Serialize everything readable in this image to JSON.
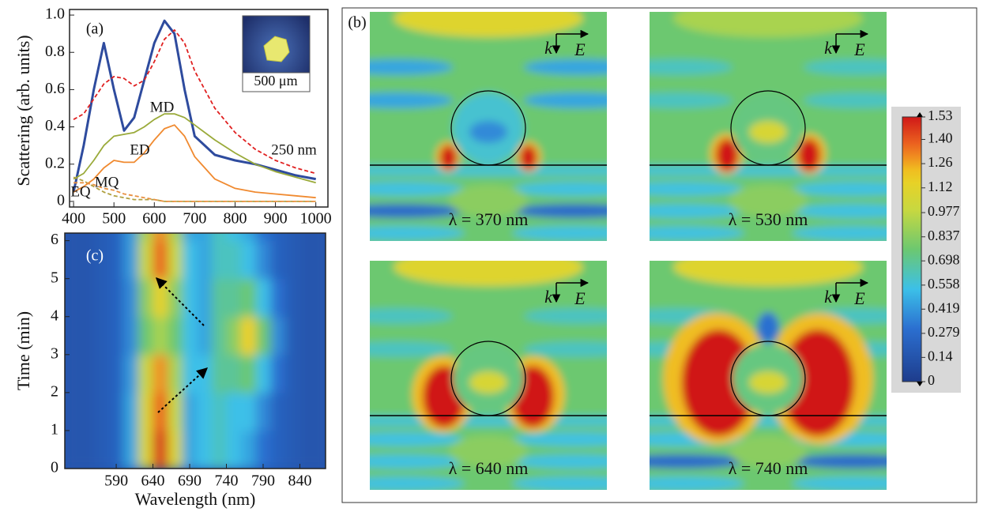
{
  "chart_data": [
    {
      "type": "line",
      "panel_label": "(a)",
      "ylabel": "Scattering (arb. units)",
      "inset_label": "500 μm",
      "xlim": [
        390,
        1030
      ],
      "ylim": [
        -0.03,
        1.03
      ],
      "xticks": [
        400,
        500,
        600,
        700,
        800,
        900,
        1000
      ],
      "yticks": [
        0,
        0.2,
        0.4,
        0.6,
        0.8,
        {
          "value": 1,
          "label": "1.0"
        }
      ],
      "x": [
        400,
        425,
        450,
        475,
        500,
        525,
        550,
        575,
        600,
        625,
        650,
        675,
        700,
        750,
        800,
        850,
        900,
        950,
        1000
      ],
      "series": [
        {
          "color": "#2e4b9e",
          "style": "solid",
          "values": [
            0.05,
            0.3,
            0.6,
            0.85,
            0.6,
            0.38,
            0.45,
            0.65,
            0.85,
            0.97,
            0.9,
            0.6,
            0.35,
            0.25,
            0.22,
            0.2,
            0.17,
            0.14,
            0.12
          ]
        },
        {
          "name": "250 nm",
          "color": "#e02020",
          "style": "dashed",
          "values": [
            0.44,
            0.47,
            0.55,
            0.63,
            0.67,
            0.66,
            0.62,
            0.65,
            0.75,
            0.87,
            0.92,
            0.85,
            0.7,
            0.5,
            0.37,
            0.28,
            0.22,
            0.18,
            0.15
          ]
        },
        {
          "name": "MD",
          "color": "#9aaa3a",
          "style": "solid",
          "values": [
            0.12,
            0.15,
            0.22,
            0.3,
            0.35,
            0.36,
            0.37,
            0.4,
            0.44,
            0.47,
            0.47,
            0.45,
            0.41,
            0.33,
            0.26,
            0.2,
            0.16,
            0.13,
            0.1
          ]
        },
        {
          "name": "ED",
          "color": "#f08a30",
          "style": "solid",
          "values": [
            0.05,
            0.08,
            0.12,
            0.18,
            0.22,
            0.21,
            0.21,
            0.26,
            0.33,
            0.39,
            0.41,
            0.35,
            0.24,
            0.12,
            0.07,
            0.05,
            0.04,
            0.03,
            0.02
          ]
        },
        {
          "name": "EQ",
          "color": "#b0a040",
          "style": "dashed",
          "values": [
            0.13,
            0.11,
            0.08,
            0.05,
            0.03,
            0.02,
            0.01,
            0.01,
            0.01,
            0,
            0,
            0,
            0,
            0,
            0,
            0,
            0,
            0,
            0
          ]
        },
        {
          "name": "MQ",
          "color": "#e89040",
          "style": "dashed",
          "values": [
            0.1,
            0.1,
            0.09,
            0.07,
            0.06,
            0.04,
            0.03,
            0.02,
            0.01,
            0,
            0,
            0,
            0,
            0,
            0,
            0,
            0,
            0,
            0
          ]
        }
      ]
    },
    {
      "type": "heatmap",
      "panel_label": "(c)",
      "xlabel": "Wavelength (nm)",
      "ylabel": "Time (min)",
      "xlim": [
        520,
        875
      ],
      "ylim": [
        0,
        6.2
      ],
      "xticks": [
        590,
        640,
        690,
        740,
        790,
        840
      ],
      "yticks": [
        0,
        1,
        2,
        3,
        4,
        5,
        6
      ],
      "x": [
        530,
        550,
        570,
        590,
        610,
        630,
        650,
        670,
        690,
        710,
        730,
        750,
        770,
        790,
        810,
        830,
        850,
        870
      ],
      "y": [
        0.5,
        1.5,
        2.5,
        3.5,
        4.5,
        5.5,
        6.5
      ],
      "z": [
        [
          0.1,
          0.1,
          0.12,
          0.15,
          0.3,
          0.7,
          0.97,
          0.7,
          0.3,
          0.35,
          0.4,
          0.35,
          0.3,
          0.2,
          0.15,
          0.12,
          0.1,
          0.1
        ],
        [
          0.1,
          0.1,
          0.12,
          0.15,
          0.3,
          0.7,
          0.9,
          0.65,
          0.3,
          0.35,
          0.4,
          0.35,
          0.35,
          0.25,
          0.15,
          0.12,
          0.1,
          0.1
        ],
        [
          0.1,
          0.1,
          0.12,
          0.15,
          0.28,
          0.65,
          0.85,
          0.6,
          0.35,
          0.35,
          0.45,
          0.45,
          0.5,
          0.35,
          0.2,
          0.12,
          0.1,
          0.1
        ],
        [
          0.1,
          0.1,
          0.12,
          0.15,
          0.25,
          0.5,
          0.6,
          0.5,
          0.35,
          0.3,
          0.45,
          0.55,
          0.78,
          0.5,
          0.25,
          0.12,
          0.1,
          0.1
        ],
        [
          0.1,
          0.1,
          0.12,
          0.15,
          0.25,
          0.55,
          0.75,
          0.55,
          0.35,
          0.3,
          0.45,
          0.45,
          0.5,
          0.35,
          0.2,
          0.12,
          0.1,
          0.1
        ],
        [
          0.1,
          0.1,
          0.12,
          0.15,
          0.28,
          0.65,
          0.9,
          0.65,
          0.35,
          0.3,
          0.4,
          0.4,
          0.35,
          0.25,
          0.15,
          0.12,
          0.1,
          0.1
        ],
        [
          0.1,
          0.1,
          0.12,
          0.15,
          0.28,
          0.6,
          0.85,
          0.6,
          0.3,
          0.3,
          0.4,
          0.35,
          0.3,
          0.2,
          0.15,
          0.12,
          0.1,
          0.1
        ]
      ]
    },
    {
      "type": "field-map",
      "panel_label": "(b)",
      "k_label": "k",
      "e_label": "E",
      "panels": [
        {
          "label": "λ = 370 nm"
        },
        {
          "label": "λ = 530 nm"
        },
        {
          "label": "λ = 640 nm"
        },
        {
          "label": "λ = 740 nm"
        }
      ],
      "clim": [
        0,
        1.53
      ],
      "colorbar_ticks": [
        0,
        0.14,
        0.279,
        0.419,
        0.558,
        0.698,
        0.837,
        0.977,
        1.12,
        1.26,
        {
          "value": 1.4,
          "label": "1.40"
        },
        1.53
      ]
    }
  ]
}
